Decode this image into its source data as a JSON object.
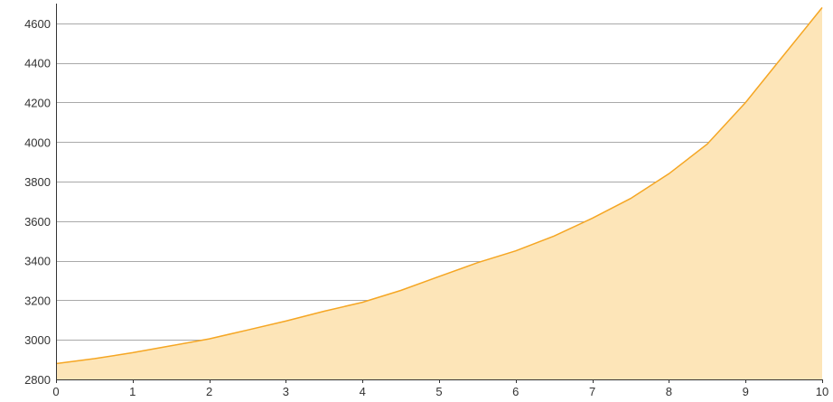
{
  "chart_data": {
    "type": "area",
    "title": "",
    "xlabel": "",
    "ylabel": "",
    "xlim": [
      0,
      10
    ],
    "ylim": [
      2800,
      4700
    ],
    "x_ticks": [
      0,
      1,
      2,
      3,
      4,
      5,
      6,
      7,
      8,
      9,
      10
    ],
    "y_ticks": [
      2800,
      3000,
      3200,
      3400,
      3600,
      3800,
      4000,
      4200,
      4400,
      4600
    ],
    "grid": "horizontal",
    "legend": "none",
    "colors": {
      "line": "#f5a623",
      "fill": "#fde5b8",
      "grid": "#a9a9a9",
      "axis": "#333333",
      "text": "#333333"
    },
    "series": [
      {
        "x": [
          0,
          0.5,
          1,
          1.5,
          2,
          2.5,
          3,
          3.5,
          4,
          4.5,
          5,
          5.5,
          6,
          6.5,
          7,
          7.5,
          8,
          8.5,
          9,
          9.5,
          10
        ],
        "y": [
          2880,
          2905,
          2935,
          2970,
          3005,
          3050,
          3095,
          3145,
          3190,
          3250,
          3320,
          3390,
          3450,
          3525,
          3615,
          3715,
          3840,
          3990,
          4200,
          4440,
          4680
        ]
      }
    ]
  }
}
